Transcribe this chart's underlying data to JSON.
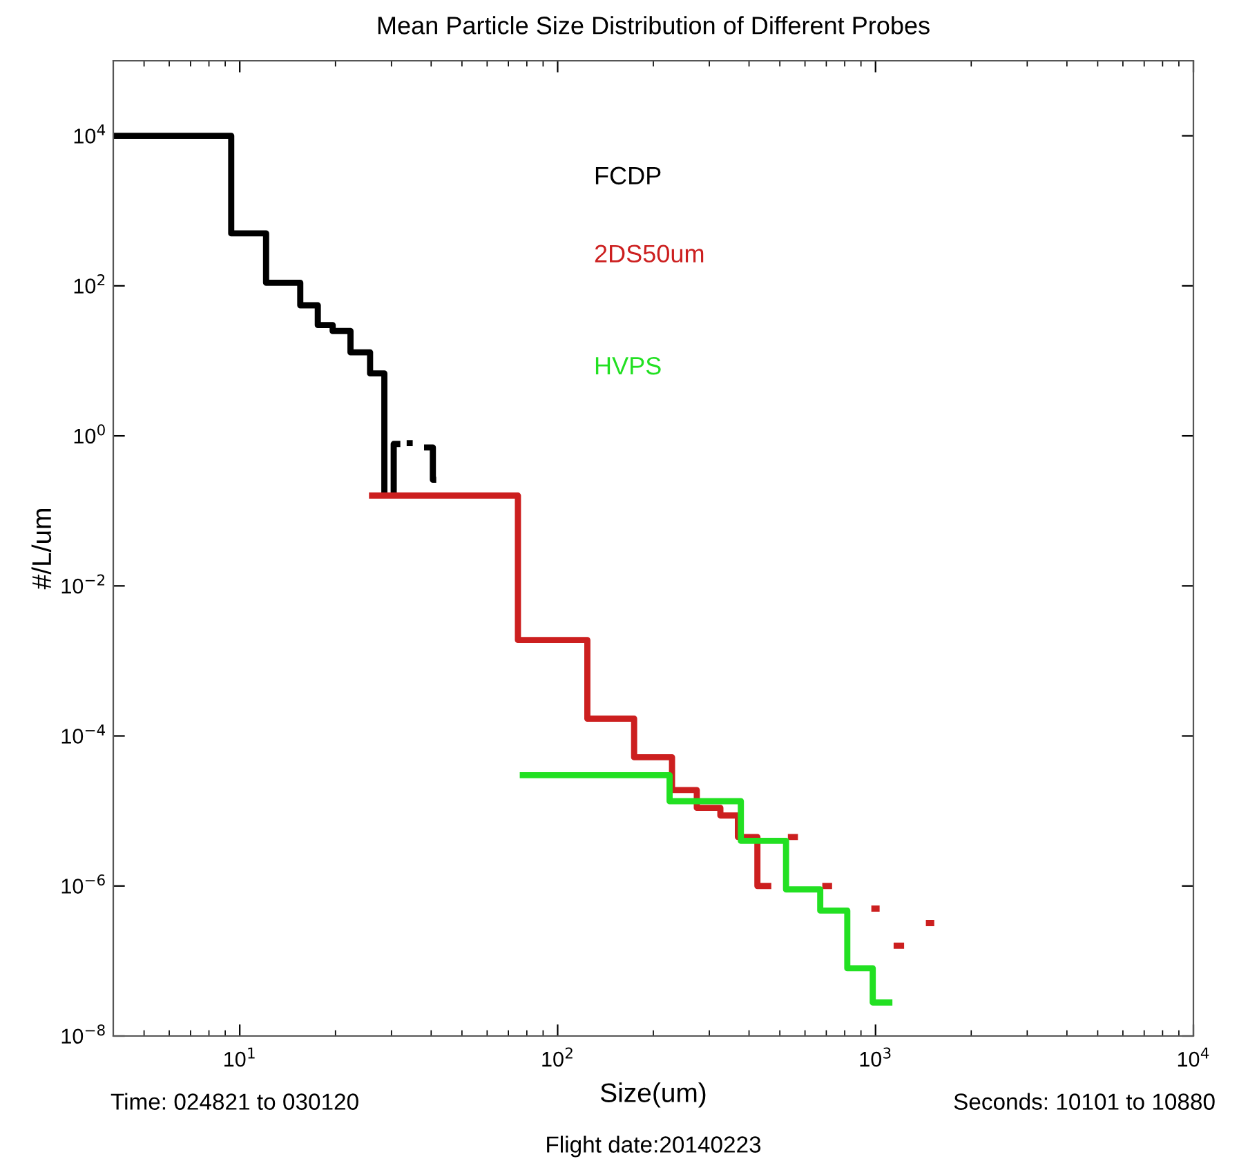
{
  "chart_data": {
    "type": "step",
    "title": "Mean Particle Size Distribution of Different Probes",
    "xlabel": "Size(um)",
    "ylabel": "#/L/um",
    "log": "xy",
    "grid": false,
    "legend": false,
    "xlim": [
      4,
      10000
    ],
    "ylim": [
      1e-08,
      100000
    ],
    "xticks": [
      {
        "value": 10,
        "label": "10$^{1}$"
      },
      {
        "value": 100,
        "label": "10$^{2}$"
      },
      {
        "value": 1000,
        "label": "10$^{3}$"
      },
      {
        "value": 10000,
        "label": "10$^{4}$"
      }
    ],
    "yticks": [
      {
        "value": 1e-08,
        "label": "10$^{−8}$"
      },
      {
        "value": 1e-06,
        "label": "10$^{−6}$"
      },
      {
        "value": 0.0001,
        "label": "10$^{−4}$"
      },
      {
        "value": 0.01,
        "label": "10$^{−2}$"
      },
      {
        "value": 1,
        "label": "10$^{0}$"
      },
      {
        "value": 100,
        "label": "10$^{2}$"
      },
      {
        "value": 10000,
        "label": "10$^{4}$"
      }
    ],
    "series": [
      {
        "name": "FCDP",
        "color": "#000000",
        "x": [
          4,
          9.4,
          12.1,
          15.5,
          17.6,
          19.6,
          22.3,
          25.7,
          28.5,
          30.5,
          32,
          33.5,
          35,
          38,
          40.5,
          41.5
        ],
        "values": [
          10000,
          500,
          110,
          55,
          30,
          25,
          13,
          6.8,
          0.16,
          0.78,
          null,
          0.8,
          null,
          0.7,
          0.26,
          0.26
        ]
      },
      {
        "name": "2DS50um",
        "color": "#cc1f1f",
        "x": [
          25.5,
          75,
          124,
          174,
          229,
          274,
          325,
          369,
          425,
          470,
          530,
          570,
          680,
          730,
          970,
          1030,
          1140,
          1230,
          1440,
          1530
        ],
        "values": [
          0.16,
          0.0019,
          0.00017,
          5.2e-05,
          1.9e-05,
          1.1e-05,
          8.7e-06,
          4.5e-06,
          1e-06,
          null,
          4.5e-06,
          null,
          1e-06,
          null,
          5e-07,
          null,
          1.6e-07,
          null,
          3.2e-07,
          3.2e-07
        ]
      },
      {
        "name": "HVPS",
        "color": "#22e022",
        "x": [
          76,
          225,
          377,
          523,
          670,
          815,
          980,
          1130
        ],
        "values": [
          3e-05,
          1.35e-05,
          4e-06,
          9e-07,
          4.7e-07,
          8e-08,
          2.8e-08,
          2.8e-08
        ]
      }
    ],
    "annotations": [
      "Time: 024821 to 030120",
      "Flight date:20140223",
      "Seconds: 10101 to 10880"
    ]
  }
}
